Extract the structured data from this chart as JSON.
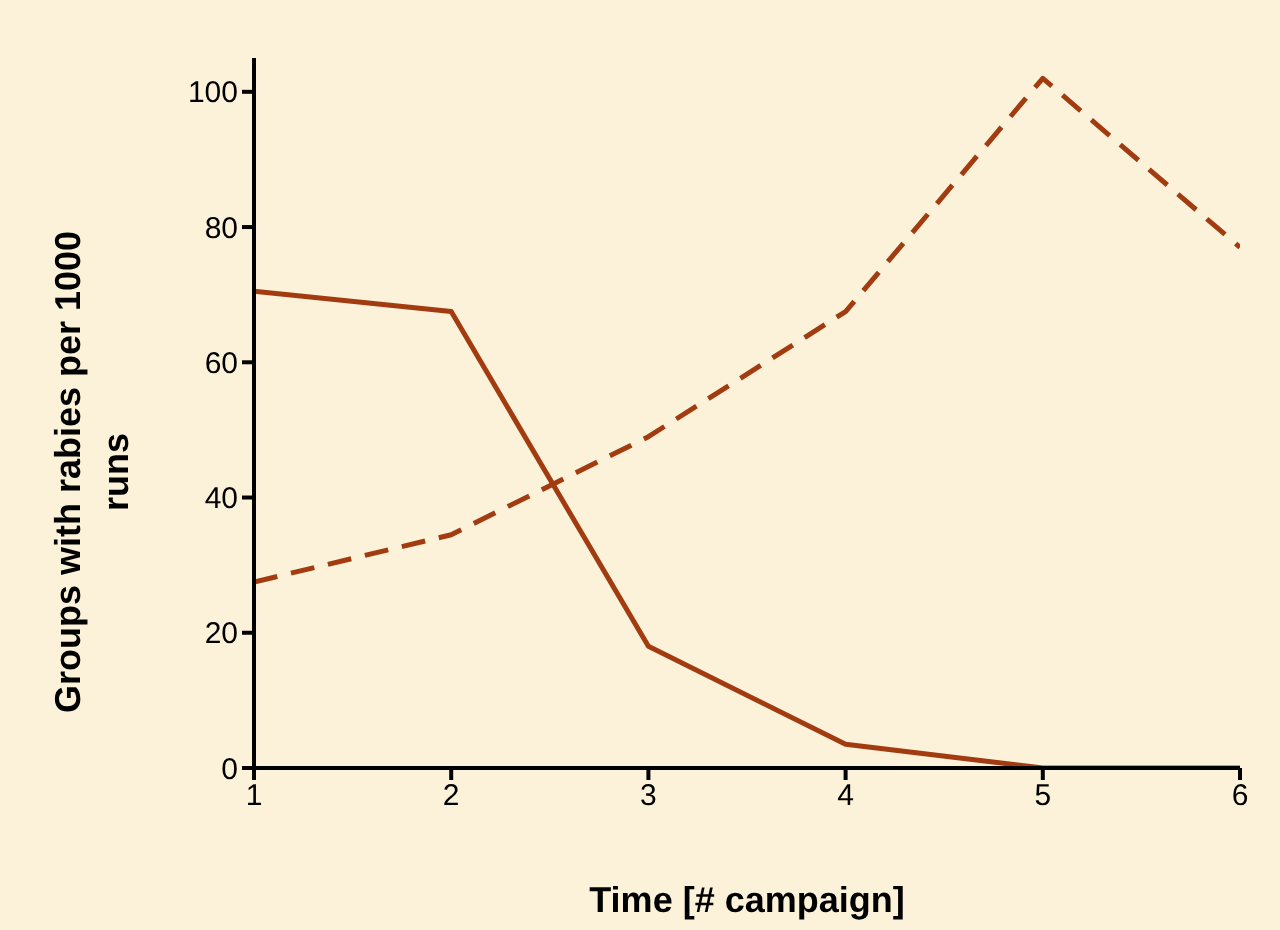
{
  "chart_data": {
    "type": "line",
    "xlabel": "Time [# campaign]",
    "ylabel": "Groups with rabies per 1000 runs",
    "x": [
      1,
      2,
      3,
      4,
      5,
      6
    ],
    "series": [
      {
        "color": "#a23b10",
        "line_style": "solid",
        "values": [
          70.5,
          67.5,
          18,
          3.5,
          0,
          0
        ]
      },
      {
        "color": "#a23b10",
        "line_style": "dashed",
        "values": [
          27.5,
          34.5,
          49,
          67.5,
          102,
          77
        ]
      }
    ],
    "xlim": [
      1,
      6
    ],
    "xticks": [
      1,
      2,
      3,
      4,
      5,
      6
    ],
    "ylim": [
      0,
      105
    ],
    "yticks": [
      0,
      20,
      40,
      60,
      80,
      100
    ],
    "grid": false,
    "marker": "none"
  }
}
